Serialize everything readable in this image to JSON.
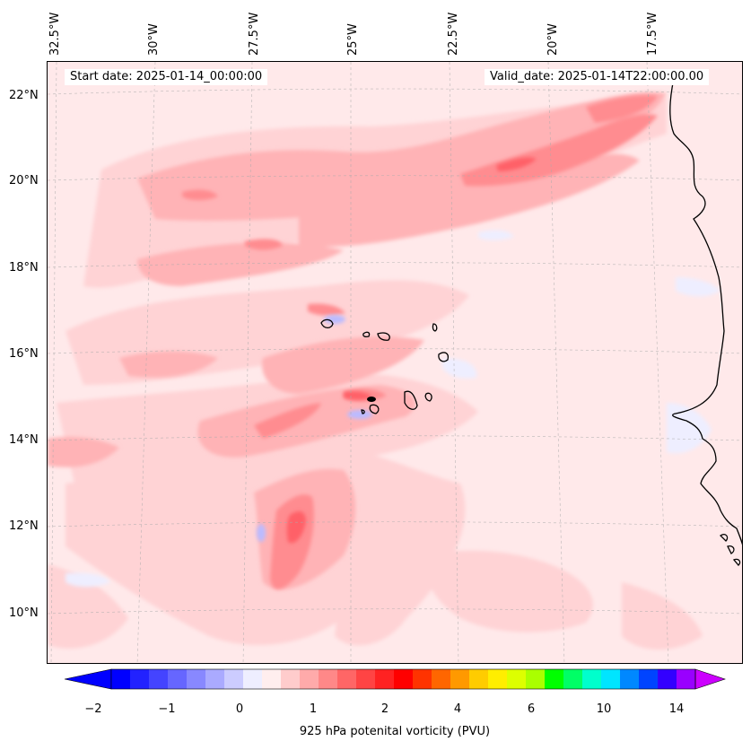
{
  "header": {
    "start_label": "Start date: 2025-01-14_00:00:00",
    "valid_label": "Valid_date: 2025-01-14T22:00:00.00"
  },
  "axes": {
    "lon_labels": [
      "32.5°W",
      "30°W",
      "27.5°W",
      "25°W",
      "22.5°W",
      "20°W",
      "17.5°W"
    ],
    "lat_labels": [
      "22°N",
      "20°N",
      "18°N",
      "16°N",
      "14°N",
      "12°N",
      "10°N"
    ]
  },
  "colorbar": {
    "label": "925 hPa potenital vorticity (PVU)",
    "ticks": [
      "−2",
      "−1",
      "0",
      "1",
      "2",
      "4",
      "6",
      "10",
      "14"
    ],
    "colors": [
      "#0000ff",
      "#2222ff",
      "#4444ff",
      "#6666ff",
      "#8888ff",
      "#aaaaff",
      "#ccccff",
      "#eeeeff",
      "#ffeeee",
      "#ffcccc",
      "#ffaaaa",
      "#ff8888",
      "#ff6666",
      "#ff4444",
      "#ff2222",
      "#ff0000",
      "#ff3300",
      "#ff6600",
      "#ff9900",
      "#ffcc00",
      "#ffee00",
      "#ddff00",
      "#aaff00",
      "#00ff00",
      "#00ff66",
      "#00ffcc",
      "#00e5ff",
      "#0088ff",
      "#0044ff",
      "#3300ff",
      "#9900ff"
    ],
    "min_color": "#0000ff",
    "max_color": "#cc00ff"
  },
  "colors": {
    "background": "#ffe9ea",
    "light_pink": "#ffd3d5",
    "pink": "#ffb3b6",
    "red": "#ff8c90",
    "deep_red": "#ff6068",
    "light_blue": "#eeeeff",
    "blue": "#bbbbff",
    "coast": "#000000"
  }
}
